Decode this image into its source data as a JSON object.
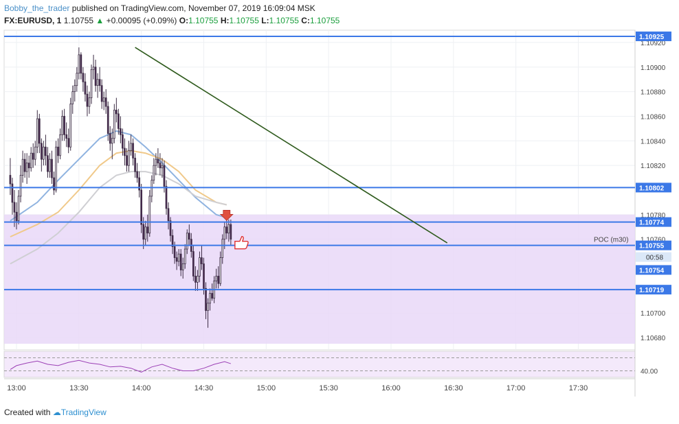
{
  "header": {
    "user": "Bobby_the_trader",
    "published": "published on TradingView.com, November 07, 2019 16:09:04 MSK",
    "symbol": "FX:EURUSD, 1",
    "last": "1.10755",
    "change": "+0.00095 (+0.09%)",
    "o_label": "O:",
    "o": "1.10755",
    "h_label": "H:",
    "h": "1.10755",
    "l_label": "L:",
    "l": "1.10755",
    "c_label": "C:",
    "c": "1.10755"
  },
  "footer": {
    "created_with": "Created with",
    "brand": "TradingView"
  },
  "colors": {
    "bull": "#ffffff",
    "bear": "#4a2a52",
    "wick": "#3a2a42",
    "hline": "#3b78e7",
    "trend": "#2e5a1c",
    "zone": "#e9d8f8",
    "ma_blue": "#8fb3e0",
    "ma_orange": "#f0c98a",
    "ma_grey": "#cfcfd3",
    "rsi": "#9b3fb5",
    "arrow": "#e05040"
  },
  "chart_data": {
    "type": "candlestick",
    "symbol": "EURUSD",
    "timeframe": "1",
    "x_ticks": [
      "13:00",
      "13:30",
      "14:00",
      "14:30",
      "15:00",
      "15:30",
      "16:00",
      "16:30",
      "17:00",
      "17:30"
    ],
    "y_ticks": [
      "1.10920",
      "1.10900",
      "1.10880",
      "1.10860",
      "1.10840",
      "1.10820",
      "1.10780",
      "1.10760",
      "1.10700",
      "1.10680"
    ],
    "ylim": [
      1.1067,
      1.1093
    ],
    "horizontal_levels": [
      {
        "value": 1.10925,
        "label": "1.10925"
      },
      {
        "value": 1.10802,
        "label": "1.10802"
      },
      {
        "value": 1.10774,
        "label": "1.10774"
      },
      {
        "value": 1.10755,
        "label": "1.10755"
      },
      {
        "value": 1.10719,
        "label": "1.10719"
      }
    ],
    "extra_price_labels": [
      {
        "value": 1.10754,
        "label": "1.10754"
      }
    ],
    "countdown": "00:58",
    "poc_label": "POC (m30)",
    "zone": {
      "from": 1.10675,
      "to": 1.1078
    },
    "trendline": [
      [
        "13:57",
        1.10916
      ],
      [
        "16:27",
        1.10757
      ]
    ],
    "candles": [
      [
        "12:57",
        1.10812,
        1.10826,
        1.10796,
        1.10805
      ],
      [
        "12:58",
        1.10805,
        1.1081,
        1.1078,
        1.1079
      ],
      [
        "12:59",
        1.1079,
        1.108,
        1.1077,
        1.10782
      ],
      [
        "13:00",
        1.10782,
        1.1079,
        1.10768,
        1.10775
      ],
      [
        "13:01",
        1.10775,
        1.108,
        1.10772,
        1.10795
      ],
      [
        "13:02",
        1.10795,
        1.1082,
        1.1079,
        1.10812
      ],
      [
        "13:03",
        1.10812,
        1.10832,
        1.10806,
        1.10825
      ],
      [
        "13:04",
        1.10825,
        1.1083,
        1.1081,
        1.10815
      ],
      [
        "13:05",
        1.10815,
        1.1083,
        1.10805,
        1.10822
      ],
      [
        "13:06",
        1.10822,
        1.10828,
        1.1081,
        1.10818
      ],
      [
        "13:07",
        1.10818,
        1.10835,
        1.10815,
        1.1083
      ],
      [
        "13:08",
        1.1083,
        1.10838,
        1.10818,
        1.10825
      ],
      [
        "13:09",
        1.10825,
        1.1084,
        1.1082,
        1.10835
      ],
      [
        "13:10",
        1.10835,
        1.10865,
        1.1083,
        1.10858
      ],
      [
        "13:11",
        1.10858,
        1.10862,
        1.1083,
        1.10838
      ],
      [
        "13:12",
        1.10838,
        1.10842,
        1.10815,
        1.10825
      ],
      [
        "13:13",
        1.10825,
        1.1084,
        1.1082,
        1.10835
      ],
      [
        "13:14",
        1.10835,
        1.10845,
        1.1082,
        1.10828
      ],
      [
        "13:15",
        1.10828,
        1.10835,
        1.1081,
        1.10815
      ],
      [
        "13:16",
        1.10815,
        1.1083,
        1.1081,
        1.10825
      ],
      [
        "13:17",
        1.10825,
        1.10832,
        1.10805,
        1.1081
      ],
      [
        "13:18",
        1.1081,
        1.10815,
        1.10796,
        1.108
      ],
      [
        "13:19",
        1.108,
        1.1084,
        1.10798,
        1.10835
      ],
      [
        "13:20",
        1.10835,
        1.10842,
        1.10822,
        1.10828
      ],
      [
        "13:21",
        1.10828,
        1.1085,
        1.10825,
        1.10845
      ],
      [
        "13:22",
        1.10845,
        1.10865,
        1.1084,
        1.1086
      ],
      [
        "13:23",
        1.1086,
        1.10866,
        1.1084,
        1.10845
      ],
      [
        "13:24",
        1.10845,
        1.10855,
        1.10835,
        1.10842
      ],
      [
        "13:25",
        1.10842,
        1.1085,
        1.1083,
        1.10835
      ],
      [
        "13:26",
        1.10835,
        1.10875,
        1.10832,
        1.1087
      ],
      [
        "13:27",
        1.1087,
        1.10885,
        1.10862,
        1.1088
      ],
      [
        "13:28",
        1.1088,
        1.1089,
        1.10872,
        1.10885
      ],
      [
        "13:29",
        1.10885,
        1.109,
        1.1088,
        1.10895
      ],
      [
        "13:30",
        1.10895,
        1.10916,
        1.1089,
        1.1091
      ],
      [
        "13:31",
        1.1091,
        1.10912,
        1.1089,
        1.10895
      ],
      [
        "13:32",
        1.10895,
        1.109,
        1.1088,
        1.10888
      ],
      [
        "13:33",
        1.10888,
        1.10895,
        1.10872,
        1.10878
      ],
      [
        "13:34",
        1.10878,
        1.10885,
        1.1086,
        1.10868
      ],
      [
        "13:35",
        1.10868,
        1.1088,
        1.10862,
        1.10875
      ],
      [
        "13:36",
        1.10875,
        1.10902,
        1.1087,
        1.10898
      ],
      [
        "13:37",
        1.10898,
        1.1091,
        1.1089,
        1.109
      ],
      [
        "13:38",
        1.109,
        1.10906,
        1.1088,
        1.10885
      ],
      [
        "13:39",
        1.10885,
        1.10895,
        1.10875,
        1.1089
      ],
      [
        "13:40",
        1.1089,
        1.109,
        1.1088,
        1.10885
      ],
      [
        "13:41",
        1.10885,
        1.1089,
        1.10866,
        1.10872
      ],
      [
        "13:42",
        1.10872,
        1.1088,
        1.10865,
        1.10875
      ],
      [
        "13:43",
        1.10875,
        1.10882,
        1.10862,
        1.10868
      ],
      [
        "13:44",
        1.10868,
        1.10872,
        1.1084,
        1.10846
      ],
      [
        "13:45",
        1.10846,
        1.10852,
        1.10832,
        1.10838
      ],
      [
        "13:46",
        1.10838,
        1.1085,
        1.10825,
        1.10842
      ],
      [
        "13:47",
        1.10842,
        1.1087,
        1.10838,
        1.10865
      ],
      [
        "13:48",
        1.10865,
        1.10875,
        1.10855,
        1.10862
      ],
      [
        "13:49",
        1.10862,
        1.10866,
        1.10845,
        1.1085
      ],
      [
        "13:50",
        1.1085,
        1.1086,
        1.10838,
        1.10845
      ],
      [
        "13:51",
        1.10845,
        1.1085,
        1.10828,
        1.10834
      ],
      [
        "13:52",
        1.10834,
        1.10842,
        1.1082,
        1.10828
      ],
      [
        "13:53",
        1.10828,
        1.10834,
        1.10815,
        1.1082
      ],
      [
        "13:54",
        1.1082,
        1.1084,
        1.10815,
        1.10832
      ],
      [
        "13:55",
        1.10832,
        1.10845,
        1.10828,
        1.10838
      ],
      [
        "13:56",
        1.10838,
        1.10842,
        1.1082,
        1.10826
      ],
      [
        "13:57",
        1.10826,
        1.1083,
        1.1081,
        1.10815
      ],
      [
        "13:58",
        1.10815,
        1.10822,
        1.10806,
        1.1081
      ],
      [
        "13:59",
        1.1081,
        1.10815,
        1.10794,
        1.108
      ],
      [
        "14:00",
        1.108,
        1.10805,
        1.10765,
        1.10772
      ],
      [
        "14:01",
        1.10772,
        1.10778,
        1.10752,
        1.1076
      ],
      [
        "14:02",
        1.1076,
        1.10775,
        1.10755,
        1.1077
      ],
      [
        "14:03",
        1.1077,
        1.1078,
        1.10758,
        1.10765
      ],
      [
        "14:04",
        1.10765,
        1.108,
        1.10762,
        1.10795
      ],
      [
        "14:05",
        1.10795,
        1.10812,
        1.1079,
        1.10808
      ],
      [
        "14:06",
        1.10808,
        1.10826,
        1.10805,
        1.1082
      ],
      [
        "14:07",
        1.1082,
        1.1083,
        1.10812,
        1.10825
      ],
      [
        "14:08",
        1.10825,
        1.10834,
        1.10818,
        1.10822
      ],
      [
        "14:09",
        1.10822,
        1.1083,
        1.10812,
        1.10818
      ],
      [
        "14:10",
        1.10818,
        1.10826,
        1.1081,
        1.1082
      ],
      [
        "14:11",
        1.1082,
        1.10824,
        1.10798,
        1.10803
      ],
      [
        "14:12",
        1.10803,
        1.10808,
        1.1078,
        1.10785
      ],
      [
        "14:13",
        1.10785,
        1.1079,
        1.10768,
        1.10775
      ],
      [
        "14:14",
        1.10775,
        1.10778,
        1.10758,
        1.10763
      ],
      [
        "14:15",
        1.10763,
        1.10768,
        1.10748,
        1.10754
      ],
      [
        "14:16",
        1.10754,
        1.10758,
        1.1074,
        1.10745
      ],
      [
        "14:17",
        1.10745,
        1.1075,
        1.10735,
        1.10742
      ],
      [
        "14:18",
        1.10742,
        1.10752,
        1.10738,
        1.10748
      ],
      [
        "14:19",
        1.10748,
        1.10752,
        1.1073,
        1.10735
      ],
      [
        "14:20",
        1.10735,
        1.10745,
        1.10728,
        1.1074
      ],
      [
        "14:21",
        1.1074,
        1.10756,
        1.10736,
        1.10752
      ],
      [
        "14:22",
        1.10752,
        1.10768,
        1.10748,
        1.10765
      ],
      [
        "14:23",
        1.10765,
        1.10772,
        1.10755,
        1.1076
      ],
      [
        "14:24",
        1.1076,
        1.10765,
        1.10745,
        1.1075
      ],
      [
        "14:25",
        1.1075,
        1.10755,
        1.10726,
        1.1073
      ],
      [
        "14:26",
        1.1073,
        1.10738,
        1.10718,
        1.10725
      ],
      [
        "14:27",
        1.10725,
        1.10735,
        1.10718,
        1.1073
      ],
      [
        "14:28",
        1.1073,
        1.1075,
        1.10725,
        1.10745
      ],
      [
        "14:29",
        1.10745,
        1.10755,
        1.10735,
        1.1074
      ],
      [
        "14:30",
        1.1074,
        1.10745,
        1.10715,
        1.1072
      ],
      [
        "14:31",
        1.1072,
        1.10725,
        1.10695,
        1.10702
      ],
      [
        "14:32",
        1.10702,
        1.10712,
        1.10688,
        1.10708
      ],
      [
        "14:33",
        1.10708,
        1.1072,
        1.10702,
        1.10716
      ],
      [
        "14:34",
        1.10716,
        1.10724,
        1.1071,
        1.10712
      ],
      [
        "14:35",
        1.10712,
        1.1073,
        1.10708,
        1.10726
      ],
      [
        "14:36",
        1.10726,
        1.10736,
        1.1072,
        1.1073
      ],
      [
        "14:37",
        1.1073,
        1.10738,
        1.1072,
        1.10724
      ],
      [
        "14:38",
        1.10724,
        1.1075,
        1.10722,
        1.10745
      ],
      [
        "14:39",
        1.10745,
        1.10764,
        1.1074,
        1.1076
      ],
      [
        "14:40",
        1.1076,
        1.10774,
        1.10752,
        1.1077
      ],
      [
        "14:41",
        1.1077,
        1.10776,
        1.1076,
        1.10765
      ],
      [
        "14:42",
        1.10765,
        1.10776,
        1.10758,
        1.10772
      ],
      [
        "14:43",
        1.10772,
        1.10776,
        1.10755,
        1.1076
      ]
    ],
    "moving_averages": [
      {
        "color": "ma_blue",
        "points": [
          [
            "12:57",
            1.10775
          ],
          [
            "13:10",
            1.1079
          ],
          [
            "13:20",
            1.10808
          ],
          [
            "13:30",
            1.10825
          ],
          [
            "13:40",
            1.10842
          ],
          [
            "13:48",
            1.10848
          ],
          [
            "13:55",
            1.10845
          ],
          [
            "14:02",
            1.10835
          ],
          [
            "14:10",
            1.10822
          ],
          [
            "14:18",
            1.10808
          ],
          [
            "14:26",
            1.10794
          ],
          [
            "14:36",
            1.1078
          ],
          [
            "14:40",
            1.10778
          ]
        ]
      },
      {
        "color": "ma_orange",
        "points": [
          [
            "12:57",
            1.10762
          ],
          [
            "13:10",
            1.10772
          ],
          [
            "13:20",
            1.10782
          ],
          [
            "13:30",
            1.108
          ],
          [
            "13:40",
            1.1082
          ],
          [
            "13:48",
            1.1083
          ],
          [
            "13:55",
            1.10832
          ],
          [
            "14:02",
            1.1083
          ],
          [
            "14:10",
            1.10825
          ],
          [
            "14:18",
            1.10815
          ],
          [
            "14:26",
            1.108
          ],
          [
            "14:36",
            1.1079
          ],
          [
            "14:41",
            1.10788
          ]
        ]
      },
      {
        "color": "ma_grey",
        "points": [
          [
            "12:57",
            1.1074
          ],
          [
            "13:10",
            1.10752
          ],
          [
            "13:20",
            1.10765
          ],
          [
            "13:30",
            1.10782
          ],
          [
            "13:40",
            1.10802
          ],
          [
            "13:48",
            1.10812
          ],
          [
            "13:55",
            1.10815
          ],
          [
            "14:02",
            1.10815
          ],
          [
            "14:10",
            1.10812
          ],
          [
            "14:18",
            1.10805
          ],
          [
            "14:26",
            1.10795
          ],
          [
            "14:36",
            1.1079
          ],
          [
            "14:41",
            1.10788
          ]
        ]
      }
    ],
    "rsi": {
      "label": "40.00",
      "points": [
        [
          "12:57",
          42
        ],
        [
          "13:00",
          48
        ],
        [
          "13:05",
          52
        ],
        [
          "13:10",
          55
        ],
        [
          "13:15",
          50
        ],
        [
          "13:20",
          48
        ],
        [
          "13:25",
          53
        ],
        [
          "13:30",
          56
        ],
        [
          "13:35",
          52
        ],
        [
          "13:40",
          50
        ],
        [
          "13:45",
          46
        ],
        [
          "13:50",
          47
        ],
        [
          "13:55",
          44
        ],
        [
          "14:00",
          38
        ],
        [
          "14:05",
          46
        ],
        [
          "14:10",
          50
        ],
        [
          "14:15",
          44
        ],
        [
          "14:20",
          40
        ],
        [
          "14:25",
          40
        ],
        [
          "14:30",
          44
        ],
        [
          "14:35",
          50
        ],
        [
          "14:40",
          54
        ],
        [
          "14:43",
          51
        ]
      ]
    }
  }
}
